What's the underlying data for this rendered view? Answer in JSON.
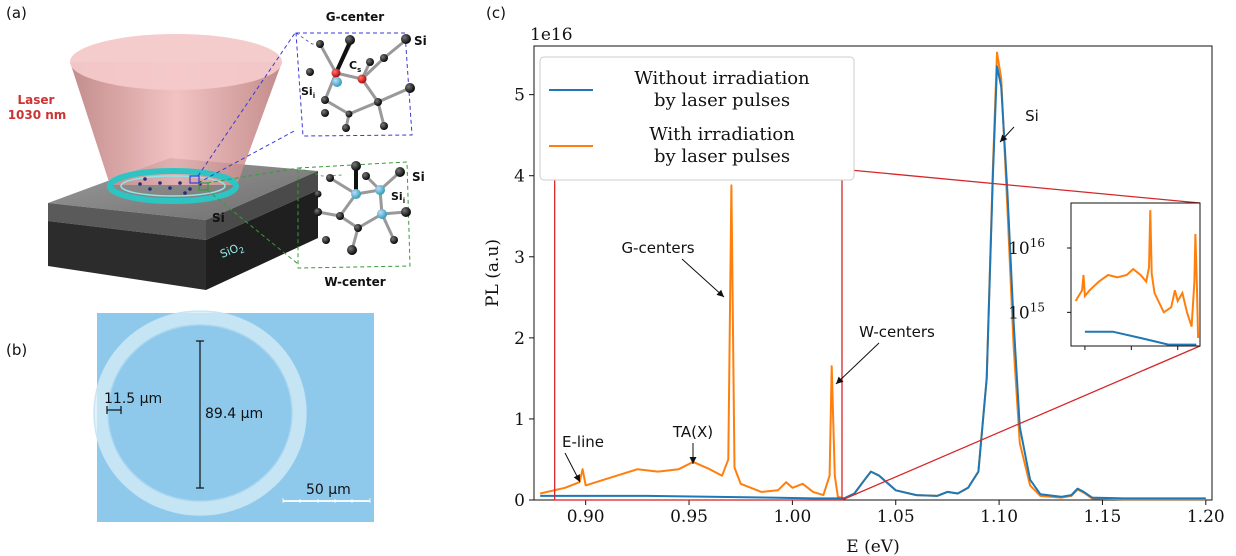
{
  "panels": {
    "a": {
      "label": "(a)",
      "laser_label_line1": "Laser",
      "laser_label_line2": "1030 nm",
      "layer_si": "Si",
      "layer_sio2": "SiO",
      "layer_sio2_sub": "2",
      "g_center": {
        "title": "G-center",
        "si_label": "Si",
        "cs_label": "C",
        "cs_sub": "s",
        "sii_label": "Si",
        "sii_sub": "i"
      },
      "w_center": {
        "title": "W-center",
        "si_label": "Si",
        "sii_label": "Si",
        "sii_sub": "i"
      },
      "colors": {
        "laser": "#e8a4a4",
        "ring": "#2ec4c4",
        "g_box": "#3a3ad6",
        "w_box": "#3a9a3a"
      }
    },
    "b": {
      "label": "(b)",
      "width_label": "11.5 µm",
      "diameter_label": "89.4 µm",
      "scale_label": "50 µm",
      "colors": {
        "background": "#8ec9ec"
      }
    },
    "c": {
      "label": "(c)"
    }
  },
  "chart_data": {
    "type": "line",
    "xlabel": "E (eV)",
    "ylabel": "PL (a.u)",
    "offset_text": "1e16",
    "xlim": [
      0.875,
      1.203
    ],
    "ylim": [
      0,
      5.6
    ],
    "x_ticks": [
      "0.90",
      "0.95",
      "1.00",
      "1.05",
      "1.10",
      "1.15",
      "1.20"
    ],
    "x_tick_values": [
      0.9,
      0.95,
      1.0,
      1.05,
      1.1,
      1.15,
      1.2
    ],
    "y_ticks": [
      "0",
      "1",
      "2",
      "3",
      "4",
      "5"
    ],
    "y_tick_values": [
      0,
      1,
      2,
      3,
      4,
      5
    ],
    "legend": {
      "placement": "top-left",
      "entries": [
        {
          "line1": "Without irradiation",
          "line2": "by laser pulses",
          "color": "#1f77b4"
        },
        {
          "line1": "With irradiation",
          "line2": "by laser pulses",
          "color": "#ff7f0e"
        }
      ]
    },
    "series": [
      {
        "name": "Without irradiation by laser pulses",
        "color": "#1f77b4",
        "x": [
          0.878,
          0.9,
          0.93,
          0.96,
          0.99,
          1.01,
          1.02,
          1.025,
          1.03,
          1.035,
          1.038,
          1.042,
          1.05,
          1.06,
          1.07,
          1.075,
          1.08,
          1.085,
          1.09,
          1.094,
          1.097,
          1.099,
          1.101,
          1.104,
          1.107,
          1.11,
          1.115,
          1.12,
          1.13,
          1.135,
          1.138,
          1.141,
          1.145,
          1.16,
          1.18,
          1.2
        ],
        "y": [
          0.05,
          0.05,
          0.05,
          0.04,
          0.03,
          0.02,
          0.02,
          0.02,
          0.08,
          0.25,
          0.35,
          0.3,
          0.12,
          0.06,
          0.05,
          0.1,
          0.08,
          0.15,
          0.35,
          1.5,
          4.0,
          5.35,
          5.1,
          3.8,
          2.2,
          0.9,
          0.25,
          0.07,
          0.04,
          0.06,
          0.14,
          0.1,
          0.03,
          0.02,
          0.02,
          0.02
        ]
      },
      {
        "name": "With irradiation by laser pulses",
        "color": "#ff7f0e",
        "x": [
          0.878,
          0.89,
          0.897,
          0.8985,
          0.9,
          0.905,
          0.915,
          0.925,
          0.935,
          0.945,
          0.952,
          0.96,
          0.966,
          0.969,
          0.9705,
          0.972,
          0.975,
          0.985,
          0.993,
          0.997,
          1.0,
          1.005,
          1.01,
          1.015,
          1.018,
          1.019,
          1.0205,
          1.022,
          1.025,
          1.03,
          1.035,
          1.038,
          1.042,
          1.05,
          1.06,
          1.07,
          1.075,
          1.08,
          1.085,
          1.09,
          1.094,
          1.097,
          1.099,
          1.101,
          1.104,
          1.107,
          1.11,
          1.115,
          1.12,
          1.13,
          1.135,
          1.138,
          1.141,
          1.145,
          1.16,
          1.18,
          1.2
        ],
        "y": [
          0.08,
          0.15,
          0.22,
          0.38,
          0.18,
          0.22,
          0.3,
          0.38,
          0.35,
          0.38,
          0.47,
          0.38,
          0.3,
          0.5,
          3.88,
          0.4,
          0.2,
          0.1,
          0.12,
          0.22,
          0.15,
          0.2,
          0.1,
          0.06,
          0.3,
          1.65,
          0.3,
          0.04,
          0.02,
          0.08,
          0.25,
          0.35,
          0.3,
          0.12,
          0.06,
          0.05,
          0.1,
          0.08,
          0.15,
          0.35,
          1.5,
          4.1,
          5.52,
          5.2,
          3.6,
          1.9,
          0.7,
          0.18,
          0.05,
          0.03,
          0.05,
          0.13,
          0.09,
          0.02,
          0.01,
          0.01,
          0.01
        ]
      }
    ],
    "annotations": [
      {
        "text": "Si",
        "x": 1.1,
        "y": 5.35
      },
      {
        "text": "G-centers",
        "x": 0.9705,
        "y": 3.88
      },
      {
        "text": "W-centers",
        "x": 1.019,
        "y": 1.65
      },
      {
        "text": "E-line",
        "x": 0.8985,
        "y": 0.38
      },
      {
        "text": "TA(X)",
        "x": 0.952,
        "y": 0.47
      }
    ],
    "zoom_region": {
      "x": [
        0.885,
        1.024
      ],
      "y": [
        0,
        4.08
      ]
    },
    "inset": {
      "scale": "log",
      "y_ticks": [
        "10",
        "10"
      ],
      "y_tick_exponents": [
        "16",
        "15"
      ],
      "y_tick_values": [
        1e+16,
        1000000000000000.0
      ],
      "ylim": [
        300000000000000.0,
        5e+16
      ]
    }
  }
}
